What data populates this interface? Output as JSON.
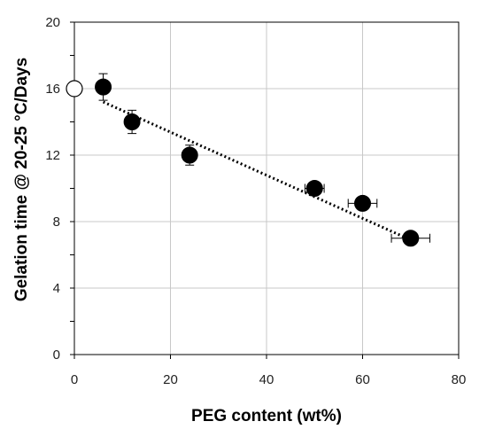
{
  "chart_data": {
    "type": "scatter",
    "xlabel": "PEG content (wt%)",
    "ylabel": "Gelation time @ 20-25 °C/Days",
    "xlim": [
      0,
      80
    ],
    "ylim": [
      0,
      20
    ],
    "x_ticks": [
      0,
      20,
      40,
      60,
      80
    ],
    "y_ticks": [
      0,
      4,
      8,
      12,
      16,
      20
    ],
    "x_tick_labels": [
      "0",
      "20",
      "40",
      "60",
      "80"
    ],
    "y_tick_labels": [
      "0",
      "4",
      "8",
      "12",
      "16",
      "20"
    ],
    "grid": true,
    "series": [
      {
        "marker": "filled-circle",
        "color": "#000000",
        "points": [
          {
            "x": 6,
            "y": 16.1,
            "y_err": 0.8,
            "x_err": 0
          },
          {
            "x": 12,
            "y": 14.0,
            "y_err": 0.7,
            "x_err": 0
          },
          {
            "x": 24,
            "y": 12.0,
            "y_err": 0.6,
            "x_err": 0
          },
          {
            "x": 50,
            "y": 10.0,
            "y_err": 0.4,
            "x_err": 2
          },
          {
            "x": 60,
            "y": 9.1,
            "y_err": 0.4,
            "x_err": 3
          },
          {
            "x": 70,
            "y": 7.0,
            "y_err": 0.3,
            "x_err": 4
          }
        ]
      },
      {
        "marker": "open-circle",
        "color": "#000000",
        "points": [
          {
            "x": 0,
            "y": 16.0
          }
        ]
      }
    ],
    "trendline": {
      "style": "dotted",
      "color": "#000000",
      "x": [
        6,
        70
      ],
      "y": [
        15.2,
        6.9
      ]
    }
  }
}
